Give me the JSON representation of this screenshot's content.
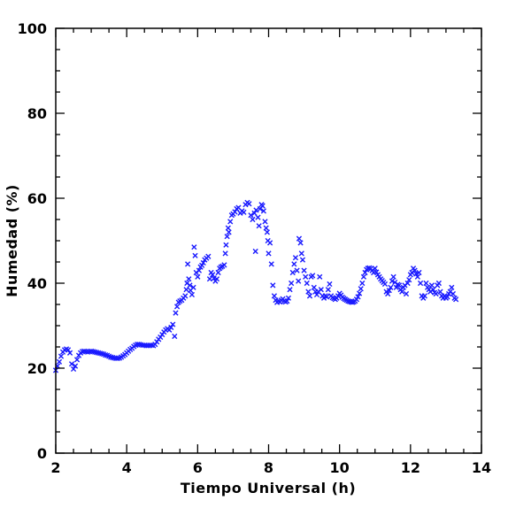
{
  "chart_data": {
    "type": "scatter",
    "title": "",
    "xlabel": "Tiempo Universal (h)",
    "ylabel": "Humedad (%)",
    "xlim": [
      2,
      14
    ],
    "ylim": [
      0,
      100
    ],
    "xticks": [
      2,
      4,
      6,
      8,
      10,
      12,
      14
    ],
    "yticks": [
      0,
      20,
      40,
      60,
      80,
      100
    ],
    "xtick_labels": [
      "2",
      "4",
      "6",
      "8",
      "10",
      "12",
      "14"
    ],
    "ytick_labels": [
      "0",
      "20",
      "40",
      "60",
      "80",
      "100"
    ],
    "x_minor_step": 0.5,
    "y_minor_step": 5,
    "grid": false,
    "marker": "x",
    "marker_color": "#1a1aff",
    "series": [
      {
        "points": [
          [
            2.0,
            19.5
          ],
          [
            2.05,
            20.5
          ],
          [
            2.1,
            21.5
          ],
          [
            2.15,
            22.8
          ],
          [
            2.2,
            23.8
          ],
          [
            2.25,
            24.3
          ],
          [
            2.3,
            24.5
          ],
          [
            2.35,
            24.3
          ],
          [
            2.4,
            23.6
          ],
          [
            2.45,
            21.0
          ],
          [
            2.5,
            19.8
          ],
          [
            2.55,
            20.5
          ],
          [
            2.6,
            22.0
          ],
          [
            2.65,
            23.0
          ],
          [
            2.7,
            23.6
          ],
          [
            2.75,
            23.9
          ],
          [
            2.8,
            24.0
          ],
          [
            2.85,
            23.9
          ],
          [
            2.9,
            23.8
          ],
          [
            2.95,
            23.9
          ],
          [
            3.0,
            24.0
          ],
          [
            3.05,
            23.9
          ],
          [
            3.1,
            23.8
          ],
          [
            3.15,
            23.7
          ],
          [
            3.2,
            23.6
          ],
          [
            3.25,
            23.5
          ],
          [
            3.3,
            23.4
          ],
          [
            3.35,
            23.3
          ],
          [
            3.4,
            23.1
          ],
          [
            3.45,
            23.0
          ],
          [
            3.5,
            22.8
          ],
          [
            3.55,
            22.6
          ],
          [
            3.6,
            22.5
          ],
          [
            3.65,
            22.4
          ],
          [
            3.7,
            22.3
          ],
          [
            3.75,
            22.3
          ],
          [
            3.8,
            22.4
          ],
          [
            3.85,
            22.6
          ],
          [
            3.9,
            22.9
          ],
          [
            3.95,
            23.2
          ],
          [
            4.0,
            23.6
          ],
          [
            4.05,
            24.0
          ],
          [
            4.1,
            24.4
          ],
          [
            4.15,
            24.7
          ],
          [
            4.2,
            25.1
          ],
          [
            4.25,
            25.4
          ],
          [
            4.3,
            25.6
          ],
          [
            4.35,
            25.6
          ],
          [
            4.4,
            25.5
          ],
          [
            4.45,
            25.4
          ],
          [
            4.5,
            25.4
          ],
          [
            4.55,
            25.3
          ],
          [
            4.6,
            25.3
          ],
          [
            4.65,
            25.4
          ],
          [
            4.7,
            25.4
          ],
          [
            4.75,
            25.3
          ],
          [
            4.8,
            25.6
          ],
          [
            4.85,
            26.2
          ],
          [
            4.9,
            26.8
          ],
          [
            4.95,
            27.3
          ],
          [
            5.0,
            27.9
          ],
          [
            5.05,
            28.5
          ],
          [
            5.1,
            29.0
          ],
          [
            5.15,
            29.3
          ],
          [
            5.2,
            29.0
          ],
          [
            5.25,
            29.6
          ],
          [
            5.3,
            30.3
          ],
          [
            5.35,
            27.5
          ],
          [
            5.38,
            33.0
          ],
          [
            5.42,
            34.5
          ],
          [
            5.46,
            35.5
          ],
          [
            5.5,
            35.8
          ],
          [
            5.55,
            36.0
          ],
          [
            5.6,
            36.5
          ],
          [
            5.65,
            37.0
          ],
          [
            5.68,
            38.5
          ],
          [
            5.7,
            40.0
          ],
          [
            5.72,
            44.5
          ],
          [
            5.75,
            41.0
          ],
          [
            5.78,
            39.5
          ],
          [
            5.8,
            38.3
          ],
          [
            5.84,
            37.3
          ],
          [
            5.88,
            39.0
          ],
          [
            5.9,
            48.5
          ],
          [
            5.93,
            46.5
          ],
          [
            5.96,
            42.5
          ],
          [
            6.0,
            41.5
          ],
          [
            6.04,
            43.0
          ],
          [
            6.08,
            43.8
          ],
          [
            6.12,
            44.2
          ],
          [
            6.16,
            44.8
          ],
          [
            6.2,
            45.5
          ],
          [
            6.25,
            45.9
          ],
          [
            6.3,
            46.3
          ],
          [
            6.34,
            41.0
          ],
          [
            6.38,
            42.5
          ],
          [
            6.42,
            42.0
          ],
          [
            6.46,
            41.2
          ],
          [
            6.5,
            40.5
          ],
          [
            6.54,
            41.0
          ],
          [
            6.58,
            42.5
          ],
          [
            6.62,
            43.5
          ],
          [
            6.66,
            43.8
          ],
          [
            6.7,
            44.0
          ],
          [
            6.75,
            44.3
          ],
          [
            6.78,
            47.0
          ],
          [
            6.8,
            49.0
          ],
          [
            6.83,
            51.0
          ],
          [
            6.86,
            53.0
          ],
          [
            6.88,
            52.0
          ],
          [
            6.92,
            54.5
          ],
          [
            6.96,
            56.0
          ],
          [
            7.0,
            56.3
          ],
          [
            7.05,
            56.8
          ],
          [
            7.1,
            57.5
          ],
          [
            7.15,
            57.8
          ],
          [
            7.2,
            56.5
          ],
          [
            7.25,
            57.0
          ],
          [
            7.3,
            56.7
          ],
          [
            7.35,
            58.5
          ],
          [
            7.4,
            59.0
          ],
          [
            7.45,
            58.7
          ],
          [
            7.5,
            56.0
          ],
          [
            7.55,
            55.0
          ],
          [
            7.6,
            56.5
          ],
          [
            7.63,
            47.5
          ],
          [
            7.65,
            57.2
          ],
          [
            7.7,
            55.5
          ],
          [
            7.73,
            53.5
          ],
          [
            7.76,
            57.5
          ],
          [
            7.8,
            58.5
          ],
          [
            7.83,
            58.2
          ],
          [
            7.86,
            57.0
          ],
          [
            7.9,
            54.5
          ],
          [
            7.93,
            53.0
          ],
          [
            7.96,
            52.0
          ],
          [
            7.98,
            50.0
          ],
          [
            8.0,
            47.0
          ],
          [
            8.04,
            49.5
          ],
          [
            8.08,
            44.5
          ],
          [
            8.12,
            39.5
          ],
          [
            8.16,
            37.0
          ],
          [
            8.2,
            36.0
          ],
          [
            8.24,
            35.5
          ],
          [
            8.28,
            35.8
          ],
          [
            8.32,
            35.6
          ],
          [
            8.36,
            36.0
          ],
          [
            8.4,
            36.3
          ],
          [
            8.44,
            35.8
          ],
          [
            8.48,
            35.6
          ],
          [
            8.52,
            35.8
          ],
          [
            8.56,
            36.5
          ],
          [
            8.6,
            38.5
          ],
          [
            8.64,
            40.0
          ],
          [
            8.68,
            42.5
          ],
          [
            8.72,
            44.5
          ],
          [
            8.76,
            46.0
          ],
          [
            8.8,
            43.0
          ],
          [
            8.84,
            40.5
          ],
          [
            8.86,
            50.5
          ],
          [
            8.9,
            49.5
          ],
          [
            8.93,
            47.0
          ],
          [
            8.96,
            45.5
          ],
          [
            9.0,
            43.0
          ],
          [
            9.04,
            41.5
          ],
          [
            9.08,
            40.0
          ],
          [
            9.12,
            38.0
          ],
          [
            9.16,
            37.0
          ],
          [
            9.2,
            41.5
          ],
          [
            9.24,
            41.8
          ],
          [
            9.28,
            39.0
          ],
          [
            9.32,
            38.0
          ],
          [
            9.36,
            37.3
          ],
          [
            9.4,
            38.0
          ],
          [
            9.44,
            41.5
          ],
          [
            9.48,
            38.5
          ],
          [
            9.52,
            37.0
          ],
          [
            9.56,
            36.5
          ],
          [
            9.6,
            37.0
          ],
          [
            9.64,
            36.8
          ],
          [
            9.68,
            38.5
          ],
          [
            9.72,
            39.8
          ],
          [
            9.76,
            37.0
          ],
          [
            9.8,
            36.6
          ],
          [
            9.84,
            36.4
          ],
          [
            9.88,
            36.2
          ],
          [
            9.92,
            36.5
          ],
          [
            9.96,
            37.0
          ],
          [
            10.0,
            37.6
          ],
          [
            10.04,
            37.2
          ],
          [
            10.08,
            36.7
          ],
          [
            10.12,
            36.4
          ],
          [
            10.16,
            36.2
          ],
          [
            10.2,
            36.0
          ],
          [
            10.24,
            35.8
          ],
          [
            10.28,
            35.7
          ],
          [
            10.32,
            35.6
          ],
          [
            10.36,
            35.5
          ],
          [
            10.4,
            35.6
          ],
          [
            10.44,
            35.8
          ],
          [
            10.48,
            36.2
          ],
          [
            10.52,
            36.8
          ],
          [
            10.56,
            37.6
          ],
          [
            10.6,
            38.7
          ],
          [
            10.64,
            40.0
          ],
          [
            10.68,
            41.5
          ],
          [
            10.72,
            42.5
          ],
          [
            10.76,
            43.2
          ],
          [
            10.8,
            43.5
          ],
          [
            10.84,
            43.6
          ],
          [
            10.88,
            43.4
          ],
          [
            10.92,
            43.0
          ],
          [
            10.96,
            42.5
          ],
          [
            11.0,
            43.5
          ],
          [
            11.04,
            42.6
          ],
          [
            11.08,
            42.0
          ],
          [
            11.12,
            41.5
          ],
          [
            11.16,
            41.0
          ],
          [
            11.2,
            40.6
          ],
          [
            11.24,
            40.2
          ],
          [
            11.28,
            39.8
          ],
          [
            11.32,
            38.0
          ],
          [
            11.36,
            37.5
          ],
          [
            11.4,
            38.3
          ],
          [
            11.44,
            39.0
          ],
          [
            11.48,
            40.5
          ],
          [
            11.52,
            41.5
          ],
          [
            11.56,
            40.2
          ],
          [
            11.6,
            39.0
          ],
          [
            11.64,
            39.7
          ],
          [
            11.68,
            39.5
          ],
          [
            11.72,
            38.5
          ],
          [
            11.76,
            38.0
          ],
          [
            11.8,
            39.0
          ],
          [
            11.84,
            39.5
          ],
          [
            11.88,
            37.5
          ],
          [
            11.92,
            40.0
          ],
          [
            11.96,
            40.8
          ],
          [
            12.0,
            42.0
          ],
          [
            12.04,
            42.5
          ],
          [
            12.08,
            43.5
          ],
          [
            12.12,
            43.0
          ],
          [
            12.16,
            42.2
          ],
          [
            12.2,
            41.5
          ],
          [
            12.24,
            42.5
          ],
          [
            12.28,
            40.0
          ],
          [
            12.32,
            37.0
          ],
          [
            12.36,
            36.5
          ],
          [
            12.4,
            37.0
          ],
          [
            12.44,
            40.0
          ],
          [
            12.48,
            39.0
          ],
          [
            12.52,
            38.5
          ],
          [
            12.56,
            38.0
          ],
          [
            12.6,
            39.5
          ],
          [
            12.64,
            38.5
          ],
          [
            12.68,
            37.8
          ],
          [
            12.72,
            37.5
          ],
          [
            12.76,
            39.5
          ],
          [
            12.8,
            40.0
          ],
          [
            12.84,
            38.0
          ],
          [
            12.88,
            37.0
          ],
          [
            12.92,
            36.5
          ],
          [
            12.96,
            37.0
          ],
          [
            13.0,
            36.5
          ],
          [
            13.04,
            36.8
          ],
          [
            13.08,
            37.5
          ],
          [
            13.12,
            38.0
          ],
          [
            13.16,
            39.0
          ],
          [
            13.2,
            37.5
          ],
          [
            13.24,
            36.5
          ],
          [
            13.28,
            36.2
          ]
        ]
      }
    ]
  }
}
